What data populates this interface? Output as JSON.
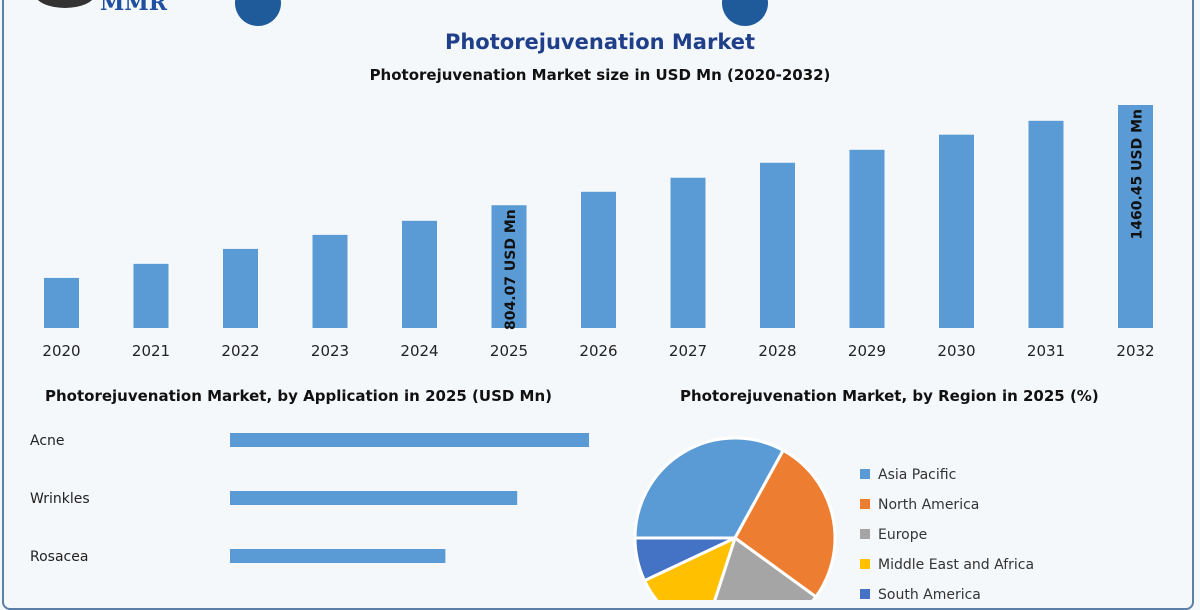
{
  "logo": {
    "text": "MMR"
  },
  "title": "Photorejuvenation Market",
  "chart_data": [
    {
      "type": "bar",
      "title": "Photorejuvenation Market size in USD Mn (2020-2032)",
      "categories": [
        "2020",
        "2021",
        "2022",
        "2023",
        "2024",
        "2025",
        "2026",
        "2027",
        "2028",
        "2029",
        "2030",
        "2031",
        "2032"
      ],
      "values": [
        328,
        420,
        518,
        610,
        702,
        804.07,
        892,
        984,
        1082,
        1167,
        1266,
        1357,
        1460.45
      ],
      "data_labels": {
        "2025": "804.07 USD Mn",
        "2032": "1460.45 USD Mn"
      },
      "color": "#5b9bd5",
      "grid": false
    },
    {
      "type": "bar",
      "orientation": "horizontal",
      "title": "Photorejuvenation Market, by Application in 2025 (USD Mn)",
      "categories": [
        "Acne",
        "Wrinkles",
        "Rosacea"
      ],
      "values": [
        1.0,
        0.8,
        0.6
      ],
      "color": "#5b9bd5"
    },
    {
      "type": "pie",
      "title": "Photorejuvenation Market, by Region in 2025 (%)",
      "labels": [
        "Asia Pacific",
        "North America",
        "Europe",
        "Middle East and Africa",
        "South America"
      ],
      "values": [
        33,
        27,
        20,
        13,
        7
      ],
      "colors": [
        "#5b9bd5",
        "#ed7d31",
        "#a5a5a5",
        "#ffc000",
        "#4472c4"
      ],
      "legend": "right"
    }
  ]
}
